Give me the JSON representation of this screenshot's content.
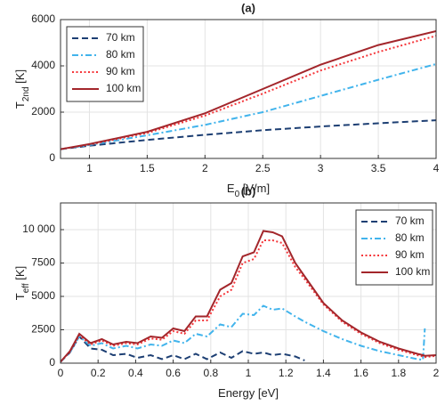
{
  "chart_data": [
    {
      "type": "line",
      "title": "(a)",
      "xlabel": {
        "base": "E",
        "sub": "0",
        "unit": " [V/m]"
      },
      "ylabel": {
        "base": "T",
        "sub": "2nd",
        "unit": " [K]"
      },
      "x": [
        0.75,
        1,
        1.5,
        2,
        2.5,
        3,
        3.5,
        4
      ],
      "xlim": [
        0.75,
        4
      ],
      "xticks": [
        1,
        1.5,
        2,
        2.5,
        3,
        3.5,
        4
      ],
      "ylim": [
        0,
        6000
      ],
      "yticks": [
        0,
        2000,
        4000,
        6000
      ],
      "grid": true,
      "legend": "upper left",
      "series": [
        {
          "name": "70 km",
          "color": "#1d3f73",
          "linestyle": "dashed",
          "values": [
            400,
            550,
            800,
            1020,
            1220,
            1380,
            1520,
            1650
          ]
        },
        {
          "name": "80 km",
          "color": "#42b4ec",
          "linestyle": "dashdot",
          "values": [
            400,
            580,
            1000,
            1450,
            2000,
            2700,
            3400,
            4080
          ]
        },
        {
          "name": "90 km",
          "color": "#f5363a",
          "linestyle": "dotted",
          "values": [
            400,
            600,
            1100,
            1850,
            2800,
            3800,
            4600,
            5300
          ]
        },
        {
          "name": "100 km",
          "color": "#a3262b",
          "linestyle": "solid",
          "values": [
            400,
            620,
            1150,
            1950,
            3000,
            4050,
            4900,
            5500
          ]
        }
      ]
    },
    {
      "type": "line",
      "title": "(b)",
      "xlabel": {
        "base": "Energy [eV]"
      },
      "ylabel": {
        "base": "T",
        "sub": "eff",
        "unit": " [K]"
      },
      "x": [
        0,
        0.05,
        0.1,
        0.16,
        0.22,
        0.28,
        0.35,
        0.41,
        0.48,
        0.54,
        0.6,
        0.66,
        0.72,
        0.78,
        0.85,
        0.91,
        0.97,
        1.03,
        1.08,
        1.13,
        1.18,
        1.25,
        1.3,
        1.4,
        1.5,
        1.6,
        1.7,
        1.8,
        1.9,
        1.93,
        1.94,
        2.0
      ],
      "xlim": [
        0,
        2
      ],
      "xticks": [
        0,
        0.2,
        0.4,
        0.6,
        0.8,
        1,
        1.2,
        1.4,
        1.6,
        1.8,
        2
      ],
      "ylim": [
        0,
        12000
      ],
      "yticks": [
        0,
        2500,
        5000,
        7500,
        {
          "value": 10000,
          "label": "10 000"
        }
      ],
      "grid": true,
      "legend": "upper right",
      "series": [
        {
          "name": "70 km",
          "color": "#1d3f73",
          "linestyle": "dashed",
          "values": [
            100,
            800,
            2000,
            1100,
            1000,
            600,
            700,
            400,
            600,
            300,
            600,
            300,
            700,
            300,
            800,
            400,
            900,
            700,
            800,
            600,
            700,
            500,
            200,
            null,
            null,
            null,
            null,
            null,
            null,
            null,
            null,
            null
          ]
        },
        {
          "name": "80 km",
          "color": "#42b4ec",
          "linestyle": "dashdot",
          "values": [
            100,
            800,
            2000,
            1300,
            1500,
            1100,
            1300,
            1100,
            1400,
            1300,
            1700,
            1500,
            2200,
            2000,
            2900,
            2700,
            3700,
            3600,
            4300,
            4000,
            4100,
            3500,
            3100,
            2400,
            1800,
            1300,
            900,
            600,
            300,
            250,
            2600,
            null
          ]
        },
        {
          "name": "90 km",
          "color": "#f5363a",
          "linestyle": "dotted",
          "values": [
            100,
            850,
            2100,
            1400,
            1700,
            1300,
            1500,
            1400,
            1850,
            1750,
            2400,
            2200,
            3200,
            3200,
            5000,
            5500,
            7500,
            7800,
            9200,
            9200,
            9000,
            7200,
            6300,
            4400,
            3100,
            2200,
            1500,
            1000,
            600,
            500,
            450,
            550
          ]
        },
        {
          "name": "100 km",
          "color": "#a3262b",
          "linestyle": "solid",
          "values": [
            100,
            900,
            2200,
            1500,
            1800,
            1400,
            1600,
            1500,
            2000,
            1900,
            2600,
            2400,
            3500,
            3500,
            5500,
            6000,
            8000,
            8300,
            9900,
            9800,
            9500,
            7500,
            6500,
            4500,
            3200,
            2300,
            1600,
            1100,
            700,
            600,
            550,
            600
          ]
        }
      ]
    }
  ]
}
